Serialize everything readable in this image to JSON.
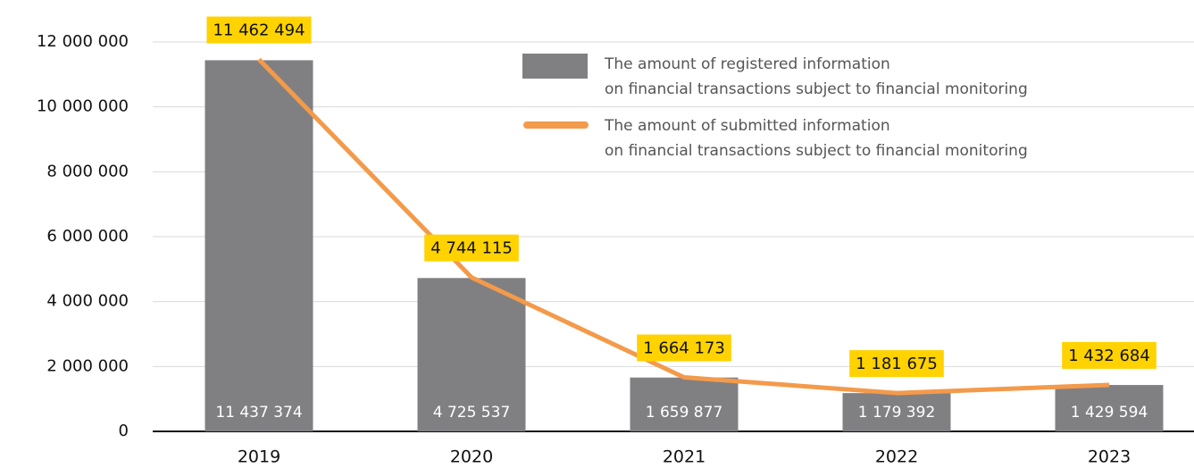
{
  "chart_data": {
    "type": "bar_line",
    "categories": [
      "2019",
      "2020",
      "2021",
      "2022",
      "2023"
    ],
    "series": [
      {
        "name": "The amount of registered information\non financial transactions subject to financial monitoring",
        "type": "bar",
        "color": "#808083",
        "values": [
          11437374,
          4725537,
          1659877,
          1179392,
          1429594
        ],
        "value_labels": [
          "11 437 374",
          "4 725 537",
          "1 659 877",
          "1 179 392",
          "1 429 594"
        ]
      },
      {
        "name": "The amount of submitted information\non financial transactions subject to financial monitoring",
        "type": "line",
        "color": "#f39a4b",
        "values": [
          11462494,
          4744115,
          1664173,
          1181675,
          1432684
        ],
        "value_labels": [
          "11 462 494",
          "4 744 115",
          "1 664 173",
          "1 181 675",
          "1 432 684"
        ]
      }
    ],
    "ylim": [
      0,
      12000000
    ],
    "yticks": [
      {
        "value": 0,
        "label": "0"
      },
      {
        "value": 2000000,
        "label": "2 000 000"
      },
      {
        "value": 4000000,
        "label": "4 000 000"
      },
      {
        "value": 6000000,
        "label": "6 000 000"
      },
      {
        "value": 8000000,
        "label": "8 000 000"
      },
      {
        "value": 10000000,
        "label": "10 000 000"
      },
      {
        "value": 12000000,
        "label": "12 000 000"
      }
    ],
    "grid": true,
    "label_box_color": "#ffd200"
  }
}
